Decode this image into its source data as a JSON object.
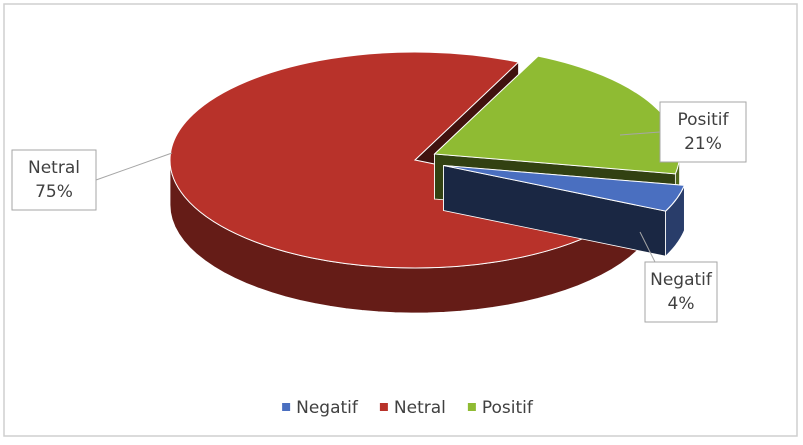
{
  "chart_data": {
    "type": "pie",
    "categories": [
      "Negatif",
      "Netral",
      "Positif"
    ],
    "values": [
      4,
      75,
      21
    ],
    "value_labels": [
      "4%",
      "75%",
      "21%"
    ],
    "colors": [
      "#4a6fc0",
      "#b8322a",
      "#8fbb33"
    ],
    "legend": "bottom"
  }
}
